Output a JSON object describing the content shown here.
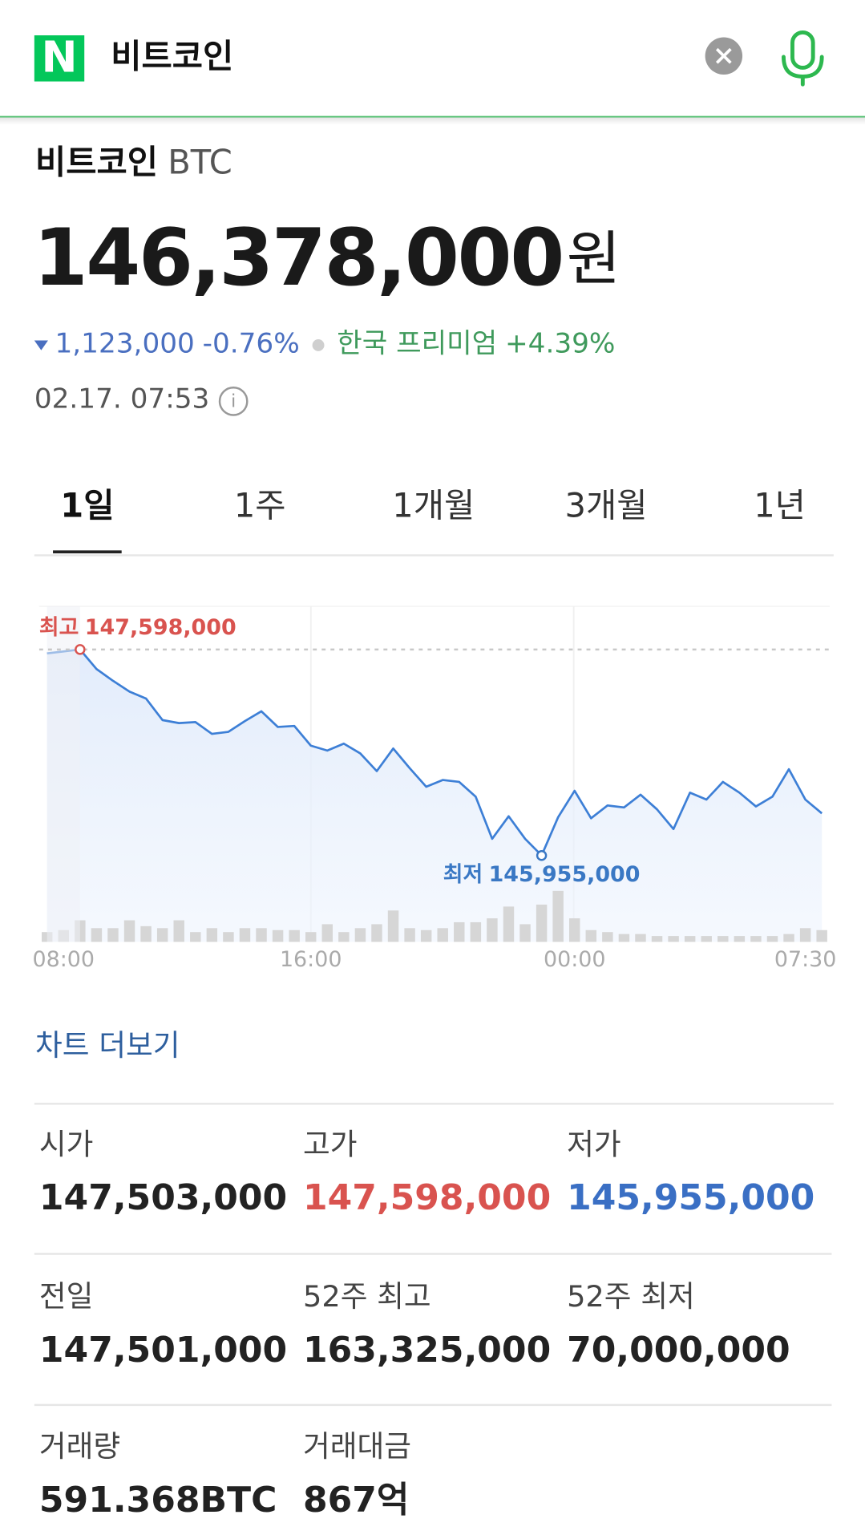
{
  "header": {
    "logo": "N",
    "query": "비트코인"
  },
  "quote": {
    "name": "비트코인",
    "ticker": "BTC",
    "price": "146,378,000",
    "unit": "원",
    "change": "1,123,000",
    "change_pct": "-0.76%",
    "premium_label": "한국 프리미엄",
    "premium": "+4.39%",
    "time": "02.17. 07:53"
  },
  "tabs": {
    "items": [
      "1일",
      "1주",
      "1개월",
      "3개월",
      "1년"
    ],
    "active": 0
  },
  "chart_data": {
    "type": "line",
    "categories": [
      null,
      "08:00",
      null,
      null,
      null,
      null,
      null,
      null,
      null,
      null,
      null,
      null,
      null,
      null,
      null,
      null,
      "16:00",
      null,
      null,
      null,
      null,
      null,
      null,
      null,
      null,
      null,
      null,
      null,
      null,
      null,
      null,
      null,
      "00:00",
      null,
      null,
      null,
      null,
      null,
      null,
      null,
      null,
      null,
      null,
      null,
      null,
      null,
      "07:30",
      null
    ],
    "series": [
      {
        "color": "#3d7fd6",
        "values": [
          147567000,
          147582000,
          147598000,
          147442000,
          147348000,
          147262000,
          147207000,
          147035000,
          147011000,
          147019000,
          146925000,
          146941000,
          147027000,
          147105000,
          146980000,
          146988000,
          146831000,
          146792000,
          146847000,
          146769000,
          146628000,
          146808000,
          146651000,
          146503000,
          146557000,
          146542000,
          146424000,
          146088000,
          146268000,
          146088000,
          145955000,
          146260000,
          146471000,
          146252000,
          146354000,
          146338000,
          146440000,
          146323000,
          146166000,
          146456000,
          146401000,
          146542000,
          146456000,
          146346000,
          146424000,
          146643000,
          146401000,
          146291000
        ]
      },
      {
        "color": "#d6d6d6",
        "axis": "y2",
        "values": [
          10,
          12,
          22,
          14,
          14,
          22,
          16,
          14,
          22,
          10,
          14,
          10,
          14,
          14,
          12,
          12,
          10,
          18,
          10,
          14,
          18,
          32,
          14,
          12,
          14,
          20,
          20,
          24,
          36,
          18,
          38,
          52,
          24,
          12,
          10,
          8,
          8,
          6,
          6,
          6,
          6,
          6,
          6,
          6,
          6,
          8,
          14,
          12
        ]
      }
    ],
    "ylim": [
      145266000,
      147942000
    ],
    "y2lim": [
      0,
      60
    ],
    "annotations": [
      {
        "label": "최고",
        "value": 147598000,
        "value_label": "147,598,000",
        "color": "#d9534f"
      },
      {
        "label": "최저",
        "value": 145955000,
        "value_label": "145,955,000",
        "color": "#3a78c4"
      }
    ]
  },
  "more": "차트 더보기",
  "stats": [
    {
      "label": "시가",
      "value": "147,503,000",
      "color": "#222222"
    },
    {
      "label": "고가",
      "value": "147,598,000",
      "color": "#d9534f"
    },
    {
      "label": "저가",
      "value": "145,955,000",
      "color": "#3a6fc4"
    },
    {
      "label": "전일",
      "value": "147,501,000",
      "color": "#222222"
    },
    {
      "label": "52주 최고",
      "value": "163,325,000",
      "color": "#222222"
    },
    {
      "label": "52주 최저",
      "value": "70,000,000",
      "color": "#222222"
    },
    {
      "label": "거래량",
      "value": "591.368BTC",
      "color": "#222222"
    },
    {
      "label": "거래대금",
      "value": "867억",
      "color": "#222222"
    }
  ]
}
